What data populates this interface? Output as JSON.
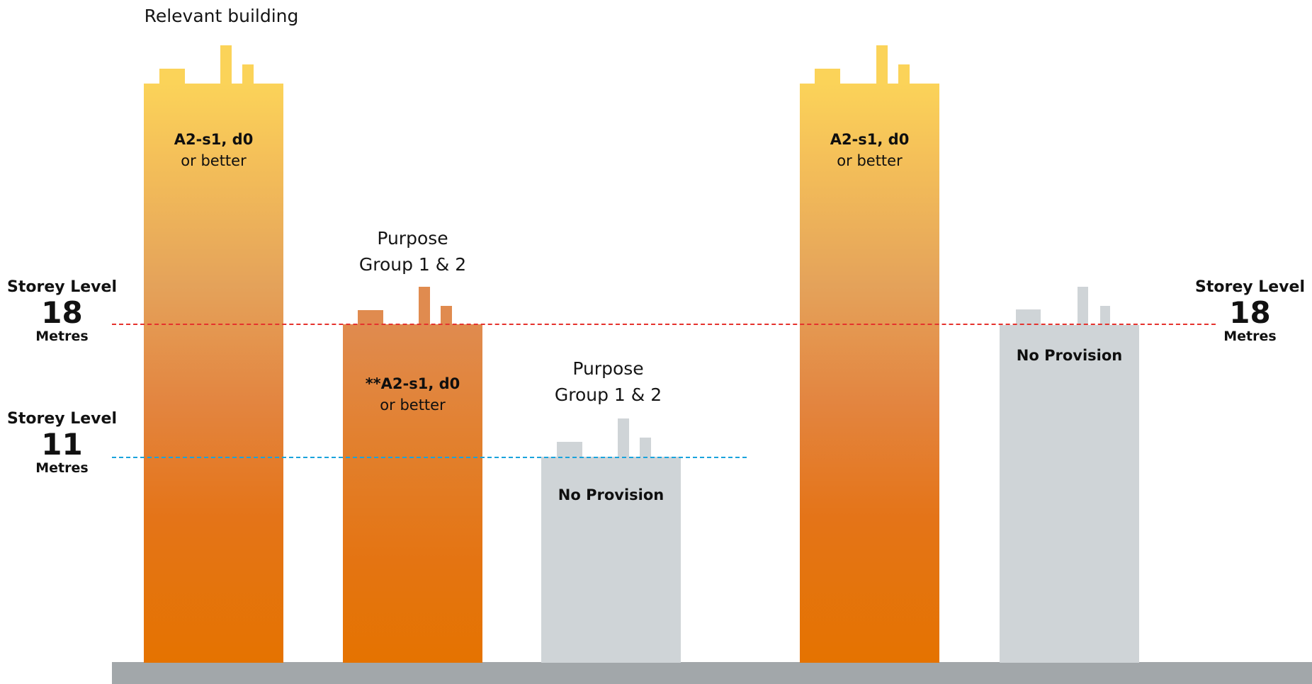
{
  "captions": {
    "relevant_building": "Relevant building",
    "purpose_group_a": [
      "Purpose",
      "Group 1 & 2"
    ],
    "purpose_group_b": [
      "Purpose",
      "Group 1 & 2"
    ]
  },
  "levels": {
    "left_18": {
      "title": "Storey Level",
      "value": "18",
      "unit": "Metres"
    },
    "left_11": {
      "title": "Storey Level",
      "value": "11",
      "unit": "Metres"
    },
    "right_18": {
      "title": "Storey Level",
      "value": "18",
      "unit": "Metres"
    }
  },
  "buildings": [
    {
      "id": "b1",
      "style": "grad-tall",
      "label_strong": "A2-s1, d0",
      "label_light": "or better"
    },
    {
      "id": "b2",
      "style": "grad-mid",
      "label_strong": "**A2-s1, d0",
      "label_light": "or better"
    },
    {
      "id": "b3",
      "style": "grey",
      "label_strong": "No Provision",
      "label_light": ""
    },
    {
      "id": "b4",
      "style": "grad-tall",
      "label_strong": "A2-s1, d0",
      "label_light": "or better"
    },
    {
      "id": "b5",
      "style": "grey",
      "label_strong": "No Provision",
      "label_light": ""
    }
  ],
  "colors": {
    "line_18m": "#e5322d",
    "line_11m": "#1aa3dc",
    "ground": "#a2a7aa",
    "grey_building": "#cfd4d7",
    "orange": "#e57300",
    "yellow": "#fbd359"
  }
}
